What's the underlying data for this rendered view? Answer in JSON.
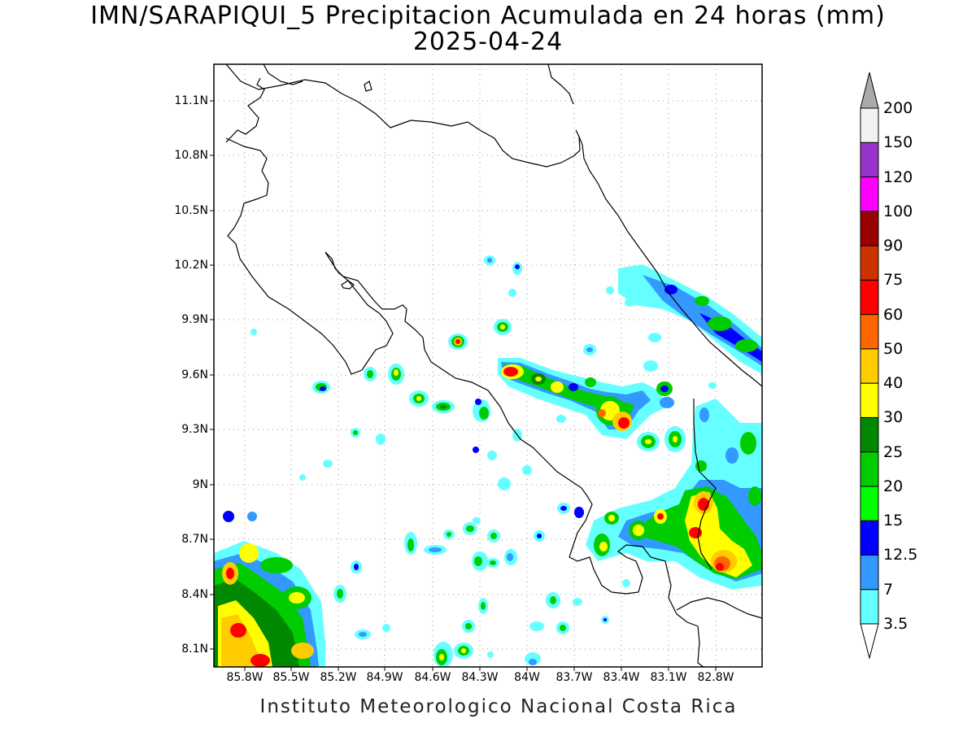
{
  "title": {
    "line1": "IMN/SARAPIQUI_5 Precipitacion Acumulada en 24 horas (mm)",
    "line2": "2025-04-24"
  },
  "footer": "Instituto Meteorologico Nacional Costa Rica",
  "map": {
    "type": "filled-contour precipitation map",
    "lon_range": [
      -86.05,
      -83.05
    ],
    "lat_range": [
      8.0,
      11.3
    ],
    "y_ticks": [
      "11.1N",
      "10.8N",
      "10.5N",
      "10.2N",
      "9.9N",
      "9.6N",
      "9.3N",
      "9N",
      "8.7N",
      "8.4N",
      "8.1N"
    ],
    "x_ticks": [
      "85.8W",
      "85.5W",
      "85.2W",
      "84.9W",
      "84.6W",
      "84.3W",
      "84W",
      "83.7W",
      "83.4W",
      "83.1W",
      "82.8W"
    ],
    "grid": "dotted"
  },
  "legend": {
    "levels": [
      "3.5",
      "7",
      "12.5",
      "15",
      "20",
      "25",
      "30",
      "40",
      "50",
      "60",
      "75",
      "90",
      "100",
      "120",
      "150",
      "200"
    ],
    "colors": [
      "#66ffff",
      "#3399ff",
      "#0000ff",
      "#00ff00",
      "#00cc00",
      "#008800",
      "#ffff00",
      "#ffcc00",
      "#ff6600",
      "#ff0000",
      "#cc3300",
      "#990000",
      "#ff00ff",
      "#9933cc",
      "#f2f2f2",
      "#aaaaaa"
    ]
  }
}
